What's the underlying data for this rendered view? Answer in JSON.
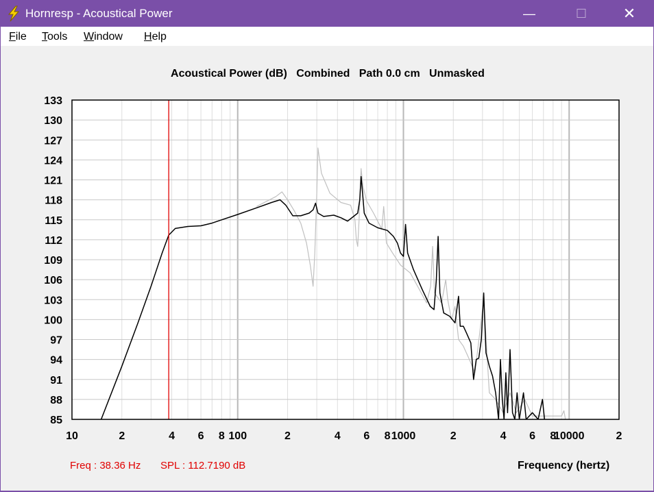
{
  "window": {
    "title": "Hornresp - Acoustical Power",
    "minimize_glyph": "—",
    "maximize_glyph": "☐",
    "close_glyph": "✕",
    "icon": "lightning-bolt-icon",
    "title_bar_color": "#7a4fa8"
  },
  "menu": {
    "items": [
      "File",
      "Tools",
      "Window",
      "Help"
    ]
  },
  "status": {
    "freq": "Freq : 38.36 Hz",
    "spl": "SPL : 112.7190 dB"
  },
  "chart_data": {
    "type": "line",
    "title": "Acoustical Power (dB)   Combined   Path 0.0 cm   Unmasked",
    "xlabel": "Frequency (hertz)",
    "ylabel": "",
    "x_scale": "log",
    "xlim": [
      10,
      20000
    ],
    "ylim": [
      85,
      133
    ],
    "grid": true,
    "y_ticks": [
      133,
      130,
      127,
      124,
      121,
      118,
      115,
      112,
      109,
      106,
      103,
      100,
      97,
      94,
      91,
      88,
      85
    ],
    "x_tick_labels": [
      {
        "x": 10,
        "label": "10"
      },
      {
        "x": 20,
        "label": "2"
      },
      {
        "x": 40,
        "label": "4"
      },
      {
        "x": 60,
        "label": "6"
      },
      {
        "x": 80,
        "label": "8"
      },
      {
        "x": 100,
        "label": "100"
      },
      {
        "x": 200,
        "label": "2"
      },
      {
        "x": 400,
        "label": "4"
      },
      {
        "x": 600,
        "label": "6"
      },
      {
        "x": 800,
        "label": "8"
      },
      {
        "x": 1000,
        "label": "1000"
      },
      {
        "x": 2000,
        "label": "2"
      },
      {
        "x": 4000,
        "label": "4"
      },
      {
        "x": 6000,
        "label": "6"
      },
      {
        "x": 8000,
        "label": "8"
      },
      {
        "x": 10000,
        "label": "10000"
      },
      {
        "x": 20000,
        "label": "2"
      }
    ],
    "marker": {
      "x": 38.36,
      "color": "#e00000"
    },
    "colors": {
      "primary": "#000000",
      "secondary": "#c0c0c0",
      "grid": "#c8c8c8",
      "marker": "#e00000"
    },
    "series": [
      {
        "color": "#000000",
        "points": [
          [
            15,
            85
          ],
          [
            20,
            93
          ],
          [
            25,
            99.5
          ],
          [
            30,
            105
          ],
          [
            35,
            110
          ],
          [
            38.36,
            112.7
          ],
          [
            42,
            113.7
          ],
          [
            50,
            114
          ],
          [
            60,
            114.1
          ],
          [
            70,
            114.5
          ],
          [
            80,
            115
          ],
          [
            100,
            115.8
          ],
          [
            130,
            116.8
          ],
          [
            160,
            117.6
          ],
          [
            180,
            118
          ],
          [
            195,
            117.2
          ],
          [
            215,
            115.6
          ],
          [
            240,
            115.6
          ],
          [
            270,
            116
          ],
          [
            285,
            116.5
          ],
          [
            295,
            117.5
          ],
          [
            305,
            116
          ],
          [
            330,
            115.5
          ],
          [
            380,
            115.7
          ],
          [
            420,
            115.3
          ],
          [
            460,
            114.8
          ],
          [
            500,
            115.5
          ],
          [
            530,
            116
          ],
          [
            545,
            118
          ],
          [
            555,
            121.5
          ],
          [
            565,
            119.5
          ],
          [
            580,
            116
          ],
          [
            620,
            114.5
          ],
          [
            700,
            113.8
          ],
          [
            800,
            113.4
          ],
          [
            870,
            112.5
          ],
          [
            920,
            111.5
          ],
          [
            960,
            110
          ],
          [
            1000,
            109.5
          ],
          [
            1030,
            114.3
          ],
          [
            1060,
            110
          ],
          [
            1150,
            107.5
          ],
          [
            1300,
            104.5
          ],
          [
            1450,
            102
          ],
          [
            1530,
            101.5
          ],
          [
            1580,
            106
          ],
          [
            1620,
            112.5
          ],
          [
            1660,
            104
          ],
          [
            1750,
            101
          ],
          [
            1900,
            100.5
          ],
          [
            2050,
            99.5
          ],
          [
            2150,
            103.5
          ],
          [
            2200,
            99
          ],
          [
            2300,
            99
          ],
          [
            2400,
            98
          ],
          [
            2550,
            96.5
          ],
          [
            2650,
            91
          ],
          [
            2750,
            94
          ],
          [
            2850,
            94.2
          ],
          [
            2950,
            97
          ],
          [
            3050,
            104
          ],
          [
            3150,
            95
          ],
          [
            3300,
            93
          ],
          [
            3450,
            91.5
          ],
          [
            3600,
            89
          ],
          [
            3750,
            85
          ],
          [
            3850,
            94
          ],
          [
            3950,
            88
          ],
          [
            4050,
            85
          ],
          [
            4150,
            92
          ],
          [
            4250,
            86
          ],
          [
            4400,
            95.5
          ],
          [
            4550,
            86
          ],
          [
            4700,
            85
          ],
          [
            4850,
            89
          ],
          [
            5000,
            85
          ],
          [
            5300,
            89
          ],
          [
            5500,
            85
          ],
          [
            6000,
            86
          ],
          [
            6500,
            85
          ],
          [
            6900,
            88
          ],
          [
            7100,
            85
          ]
        ]
      },
      {
        "color": "#c0c0c0",
        "points": [
          [
            130,
            117
          ],
          [
            170,
            118.5
          ],
          [
            185,
            119.2
          ],
          [
            200,
            118
          ],
          [
            220,
            116.3
          ],
          [
            240,
            114.5
          ],
          [
            260,
            111.5
          ],
          [
            275,
            108
          ],
          [
            285,
            105
          ],
          [
            292,
            110
          ],
          [
            300,
            119
          ],
          [
            305,
            125.8
          ],
          [
            320,
            122
          ],
          [
            360,
            119
          ],
          [
            420,
            117.6
          ],
          [
            480,
            117.2
          ],
          [
            510,
            115
          ],
          [
            520,
            112
          ],
          [
            530,
            111
          ],
          [
            540,
            115
          ],
          [
            555,
            122.7
          ],
          [
            570,
            120
          ],
          [
            600,
            117.8
          ],
          [
            660,
            116
          ],
          [
            740,
            113.6
          ],
          [
            760,
            117
          ],
          [
            790,
            111.5
          ],
          [
            860,
            110
          ],
          [
            960,
            108.2
          ],
          [
            1100,
            107
          ],
          [
            1250,
            104.5
          ],
          [
            1380,
            102.5
          ],
          [
            1460,
            105
          ],
          [
            1500,
            111
          ],
          [
            1540,
            104
          ],
          [
            1700,
            102.5
          ],
          [
            1800,
            106
          ],
          [
            1850,
            103
          ],
          [
            1950,
            100
          ],
          [
            2050,
            102
          ],
          [
            2150,
            97
          ],
          [
            2300,
            96
          ],
          [
            2500,
            94
          ],
          [
            2700,
            92
          ],
          [
            3050,
            103
          ],
          [
            3300,
            89
          ],
          [
            3600,
            88
          ],
          [
            4000,
            86
          ],
          [
            4400,
            89
          ],
          [
            4800,
            86
          ],
          [
            5400,
            88
          ],
          [
            6000,
            85.5
          ],
          [
            9000,
            85.5
          ],
          [
            9300,
            86.3
          ],
          [
            9500,
            85
          ]
        ]
      }
    ]
  }
}
